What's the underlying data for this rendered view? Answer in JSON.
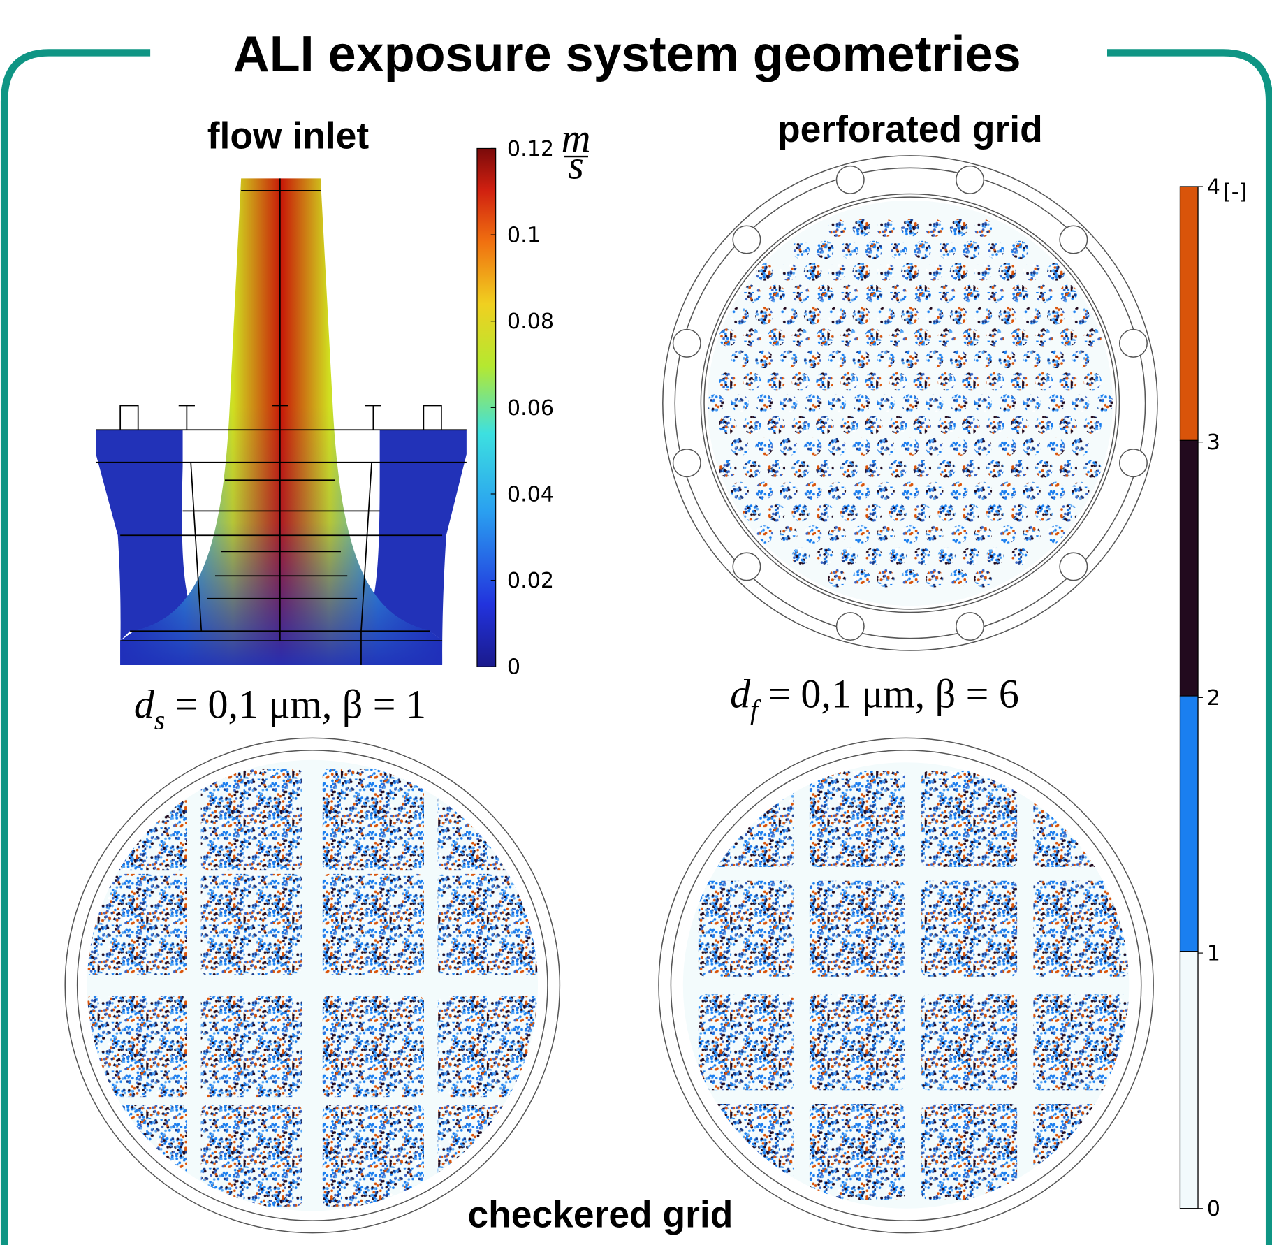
{
  "title": "ALI exposure system geometries",
  "panels": {
    "flow_inlet": {
      "title": "flow inlet",
      "colorbar": {
        "ticks": [
          "0.12",
          "0.1",
          "0.08",
          "0.06",
          "0.04",
          "0.02",
          "0"
        ],
        "unit_numerator": "m",
        "unit_denominator": "s"
      }
    },
    "perforated_grid": {
      "title": "perforated grid"
    },
    "checkered_grid": {
      "title": "checkered grid"
    },
    "left_condition": {
      "symbol": "d",
      "subscript": "s",
      "expression": "= 0,1 μm, β = 1"
    },
    "right_condition": {
      "symbol": "d",
      "subscript": "f",
      "expression": "= 0,1 μm, β = 6"
    },
    "count_colorbar": {
      "ticks": [
        "4",
        "3",
        "2",
        "1",
        "0"
      ],
      "unit": "[-]"
    }
  }
}
